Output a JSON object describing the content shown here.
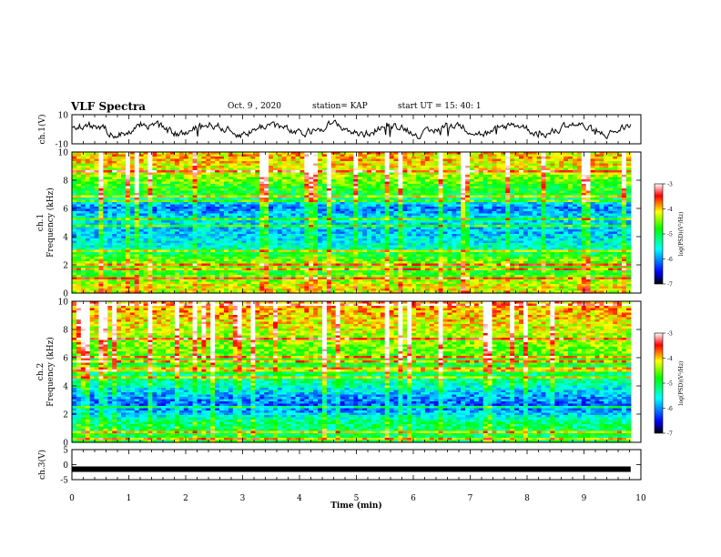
{
  "header": {
    "title": "VLF Spectra",
    "date": "Oct. 9 , 2020",
    "station": "station= KAP",
    "start": "start  UT =  15: 40: 1"
  },
  "chart_data": [
    {
      "type": "line",
      "panel": "ch1-waveform",
      "ylabel": "ch.1(V)",
      "ylim": [
        -10,
        10
      ],
      "yticks": [
        "10",
        "-10"
      ],
      "description_series": "noisy waveform around 0 V"
    },
    {
      "type": "heatmap",
      "panel": "ch1-spectrogram",
      "ylabel": "ch.1\nFrequency (kHz)",
      "ylabel_line1": "ch.1",
      "ylabel_line2": "Frequency  (kHz)",
      "ylim": [
        0,
        10
      ],
      "yticks": [
        "0",
        "2",
        "4",
        "6",
        "8",
        "10"
      ],
      "colorbar": {
        "label": "log(PSD)(V²/Hz)",
        "ticks": [
          "-3",
          "-4",
          "-5",
          "-6",
          "-7"
        ],
        "range": [
          -7,
          -3
        ]
      },
      "band_profile": [
        {
          "f": 0.5,
          "v": -4.2
        },
        {
          "f": 1.5,
          "v": -4.8
        },
        {
          "f": 2.3,
          "v": -4.5
        },
        {
          "f": 3.2,
          "v": -5.4
        },
        {
          "f": 4.3,
          "v": -5.8
        },
        {
          "f": 5.3,
          "v": -5.6
        },
        {
          "f": 6.0,
          "v": -6.1
        },
        {
          "f": 7.0,
          "v": -5.0
        },
        {
          "f": 8.5,
          "v": -4.3
        },
        {
          "f": 9.5,
          "v": -4.0
        }
      ]
    },
    {
      "type": "heatmap",
      "panel": "ch2-spectrogram",
      "ylabel_line1": "ch.2",
      "ylabel_line2": "Frequency  (kHz)",
      "ylim": [
        0,
        10
      ],
      "yticks": [
        "0",
        "2",
        "4",
        "6",
        "8",
        "10"
      ],
      "colorbar": {
        "label": "log(PSD)(V²/Hz)",
        "ticks": [
          "-3",
          "-4",
          "-5",
          "-6",
          "-7"
        ],
        "range": [
          -7,
          -3
        ]
      },
      "band_profile": [
        {
          "f": 0.5,
          "v": -5.0
        },
        {
          "f": 1.5,
          "v": -5.2
        },
        {
          "f": 2.5,
          "v": -6.2
        },
        {
          "f": 3.2,
          "v": -6.0
        },
        {
          "f": 4.2,
          "v": -5.3
        },
        {
          "f": 5.2,
          "v": -5.0
        },
        {
          "f": 6.3,
          "v": -4.6
        },
        {
          "f": 7.3,
          "v": -4.4
        },
        {
          "f": 8.5,
          "v": -4.1
        },
        {
          "f": 9.5,
          "v": -3.9
        }
      ]
    },
    {
      "type": "line",
      "panel": "ch3-waveform",
      "ylabel": "ch.3(V)",
      "ylim": [
        -5,
        5
      ],
      "yticks": [
        "5",
        "0",
        "-5"
      ],
      "level": -1.5
    }
  ],
  "xaxis": {
    "label": "Time  (min)",
    "ticks": [
      "0",
      "1",
      "2",
      "3",
      "4",
      "5",
      "6",
      "7",
      "8",
      "9",
      "10"
    ],
    "xlim": [
      0,
      10
    ],
    "data_end": 9.82
  },
  "colors": {
    "scale": [
      "#000000",
      "#0000ff",
      "#00ffff",
      "#00ff00",
      "#ffff00",
      "#ff0000",
      "#ffffff"
    ]
  }
}
